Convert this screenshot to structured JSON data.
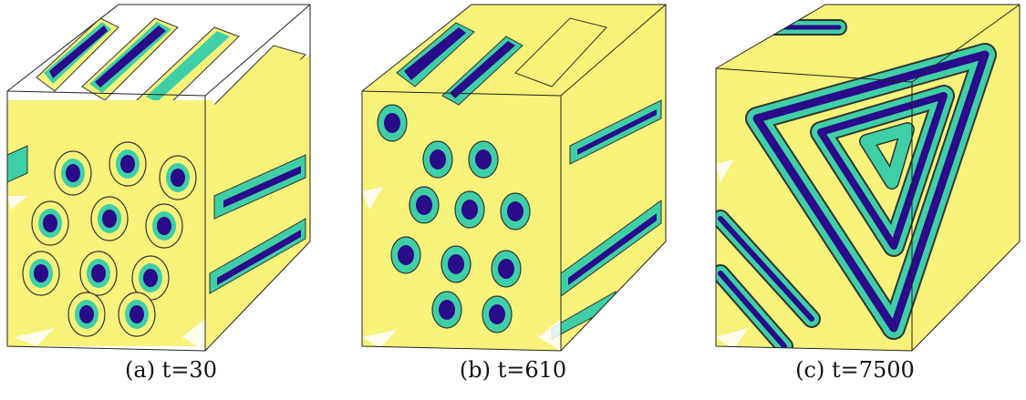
{
  "figure": {
    "panels": [
      {
        "id": "a",
        "caption": "(a) t=30",
        "pattern": "cylinders"
      },
      {
        "id": "b",
        "caption": "(b) t=610",
        "pattern": "cylinders-transition"
      },
      {
        "id": "c",
        "caption": "(c) t=7500",
        "pattern": "lamellae"
      }
    ],
    "colors": {
      "outer_isosurface": "#f7f27a",
      "middle_isosurface": "#3fcfa6",
      "inner_isosurface": "#2a0b8a",
      "box_edges": "#222222"
    }
  }
}
